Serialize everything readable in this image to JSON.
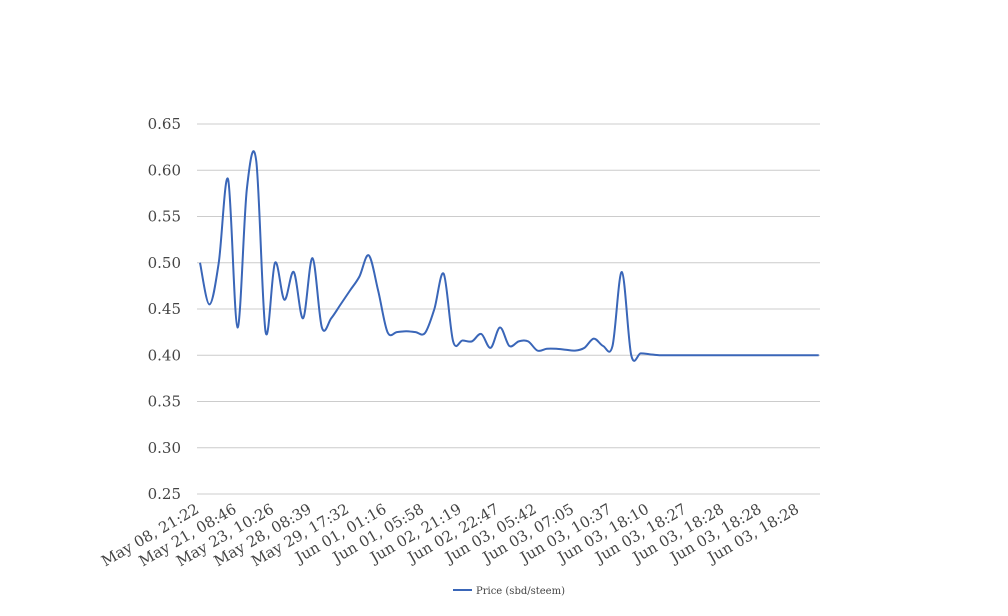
{
  "chart_data": {
    "type": "line",
    "categories": [
      "May 08, 21:22",
      null,
      null,
      null,
      "May 21, 08:46",
      null,
      null,
      null,
      "May 23, 10:26",
      null,
      null,
      null,
      "May 28, 08:39",
      null,
      null,
      null,
      "May 29, 17:32",
      null,
      null,
      null,
      "Jun 01, 01:16",
      null,
      null,
      null,
      "Jun 01, 05:58",
      null,
      null,
      null,
      "Jun 02, 21:19",
      null,
      null,
      null,
      "Jun 02, 22:47",
      null,
      null,
      null,
      "Jun 03, 05:42",
      null,
      null,
      null,
      "Jun 03, 07:05",
      null,
      null,
      null,
      "Jun 03, 10:37",
      null,
      null,
      null,
      "Jun 03, 18:10",
      null,
      null,
      null,
      "Jun 03, 18:27",
      null,
      null,
      null,
      "Jun 03, 18:28",
      null,
      null,
      null,
      "Jun 03, 18:28",
      null,
      null,
      null,
      "Jun 03, 18:28",
      null,
      null
    ],
    "series": [
      {
        "name": "Price (sbd/steem)",
        "color": "#3a66b8",
        "values": [
          0.5,
          0.455,
          0.5,
          0.59,
          0.43,
          0.58,
          0.61,
          0.425,
          0.5,
          0.46,
          0.49,
          0.44,
          0.505,
          0.43,
          0.44,
          0.455,
          0.47,
          0.485,
          0.508,
          0.47,
          0.425,
          0.425,
          0.426,
          0.425,
          0.424,
          0.45,
          0.488,
          0.415,
          0.416,
          0.415,
          0.423,
          0.408,
          0.43,
          0.41,
          0.415,
          0.415,
          0.405,
          0.407,
          0.407,
          0.406,
          0.405,
          0.408,
          0.418,
          0.41,
          0.41,
          0.49,
          0.4,
          0.402,
          0.401,
          0.4,
          0.4,
          0.4,
          0.4,
          0.4,
          0.4,
          0.4,
          0.4,
          0.4,
          0.4,
          0.4,
          0.4,
          0.4,
          0.4,
          0.4,
          0.4,
          0.4,
          0.4
        ]
      }
    ],
    "ylim": [
      0.25,
      0.65
    ],
    "yticks": [
      0.25,
      {
        "value": 0.3,
        "label": "0.30"
      },
      0.35,
      {
        "value": 0.4,
        "label": "0.40"
      },
      0.45,
      {
        "value": 0.5,
        "label": "0.50"
      },
      0.55,
      {
        "value": 0.6,
        "label": "0.60"
      },
      0.65
    ],
    "grid": true,
    "legend": "bottom"
  }
}
